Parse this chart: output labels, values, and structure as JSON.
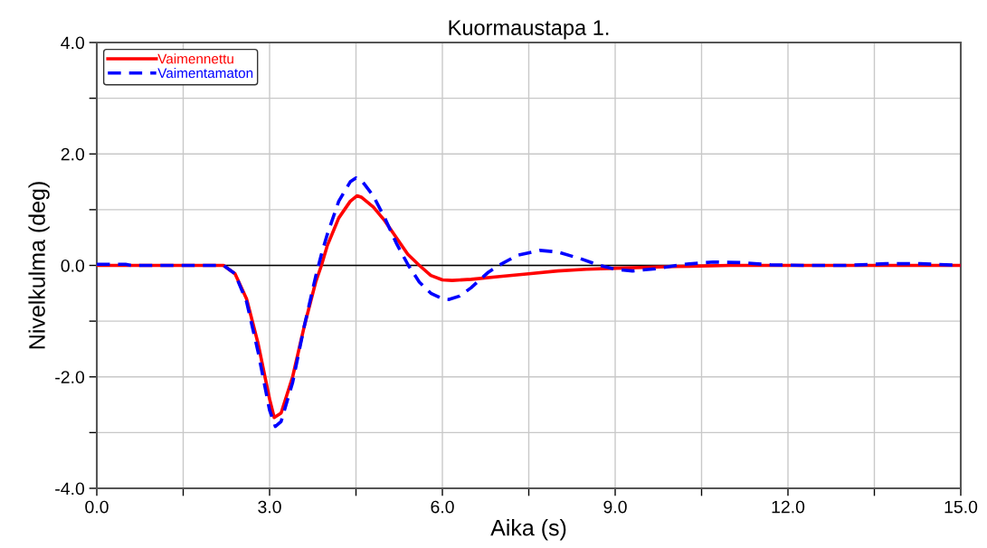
{
  "chart_data": {
    "type": "line",
    "title": "Kuormaustapa 1.",
    "xlabel": "Aika (s)",
    "ylabel": "Nivelkulma (deg)",
    "xlim": [
      0,
      15
    ],
    "ylim": [
      -4,
      4
    ],
    "xticks": [
      {
        "value": 0,
        "label": "0.0"
      },
      {
        "value": 1.5,
        "label": null
      },
      {
        "value": 3,
        "label": "3.0"
      },
      {
        "value": 4.5,
        "label": null
      },
      {
        "value": 6,
        "label": "6.0"
      },
      {
        "value": 7.5,
        "label": null
      },
      {
        "value": 9,
        "label": "9.0"
      },
      {
        "value": 10.5,
        "label": null
      },
      {
        "value": 12,
        "label": "12.0"
      },
      {
        "value": 13.5,
        "label": null
      },
      {
        "value": 15,
        "label": "15.0"
      }
    ],
    "yticks": [
      {
        "value": -4,
        "label": "-4.0"
      },
      {
        "value": -3,
        "label": null
      },
      {
        "value": -2,
        "label": "-2.0"
      },
      {
        "value": -1,
        "label": null
      },
      {
        "value": 0,
        "label": "0.0"
      },
      {
        "value": 1,
        "label": null
      },
      {
        "value": 2,
        "label": "2.0"
      },
      {
        "value": 3,
        "label": null
      },
      {
        "value": 4,
        "label": "4.0"
      }
    ],
    "grid": true,
    "legend": "top left",
    "marker": "none",
    "ref_lines": [
      {
        "axis": "y",
        "value": 0,
        "color": "#000000",
        "line_style": "solid"
      }
    ],
    "series": [
      {
        "name": "Vaimennettu",
        "color": "#ff0000",
        "line_style": "solid",
        "x": [
          0,
          2.2,
          2.4,
          2.6,
          2.8,
          3.0,
          3.08,
          3.2,
          3.4,
          3.6,
          3.8,
          3.9,
          4.0,
          4.2,
          4.4,
          4.52,
          4.6,
          4.8,
          5.0,
          5.2,
          5.4,
          5.6,
          5.8,
          6.0,
          6.17,
          6.5,
          7.0,
          7.5,
          8.0,
          8.5,
          9.0,
          10.0,
          11.0,
          15.0
        ],
        "values": [
          0,
          0,
          -0.15,
          -0.6,
          -1.4,
          -2.4,
          -2.73,
          -2.65,
          -2.0,
          -1.1,
          -0.3,
          0.0,
          0.35,
          0.85,
          1.15,
          1.25,
          1.22,
          1.05,
          0.8,
          0.5,
          0.2,
          0.0,
          -0.18,
          -0.26,
          -0.27,
          -0.25,
          -0.2,
          -0.15,
          -0.1,
          -0.07,
          -0.05,
          -0.02,
          0,
          0
        ]
      },
      {
        "name": "Vaimentamaton",
        "color": "#0000ff",
        "line_style": "dashed",
        "x": [
          0,
          0.5,
          0.6,
          2.2,
          2.4,
          2.6,
          2.8,
          3.0,
          3.1,
          3.2,
          3.4,
          3.6,
          3.8,
          3.9,
          4.0,
          4.2,
          4.4,
          4.5,
          4.6,
          4.8,
          5.0,
          5.2,
          5.41,
          5.6,
          5.8,
          6.0,
          6.12,
          6.3,
          6.5,
          6.8,
          6.98,
          7.3,
          7.69,
          8.0,
          8.4,
          8.73,
          9.0,
          9.3,
          9.7,
          10.2,
          10.7,
          11.2,
          11.7,
          12.3,
          13.0,
          13.7,
          14.3,
          15.0
        ],
        "values": [
          0.02,
          0.02,
          0,
          0,
          -0.15,
          -0.65,
          -1.55,
          -2.6,
          -2.89,
          -2.8,
          -2.1,
          -1.1,
          -0.2,
          0.2,
          0.55,
          1.15,
          1.5,
          1.57,
          1.52,
          1.25,
          0.85,
          0.4,
          0.0,
          -0.3,
          -0.5,
          -0.6,
          -0.61,
          -0.55,
          -0.4,
          -0.12,
          0.0,
          0.18,
          0.27,
          0.24,
          0.12,
          0.0,
          -0.07,
          -0.1,
          -0.06,
          0.02,
          0.06,
          0.05,
          0.01,
          0,
          0,
          0.03,
          0.03,
          0
        ]
      }
    ]
  }
}
